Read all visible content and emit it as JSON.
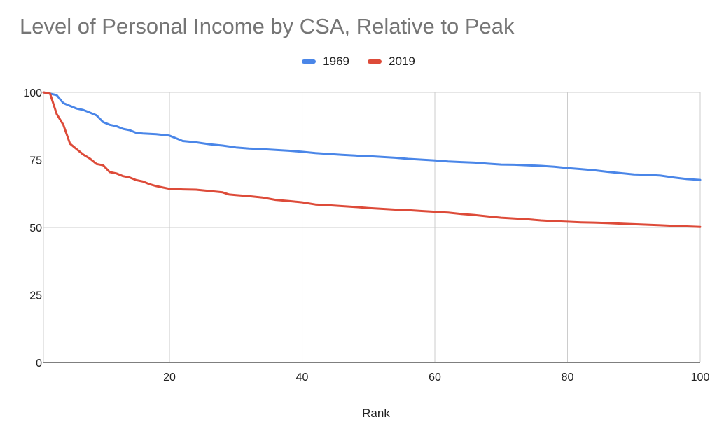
{
  "chart_data": {
    "type": "line",
    "title": "Level of Personal Income by CSA, Relative to Peak",
    "xlabel": "Rank",
    "ylabel": "",
    "xlim": [
      1,
      100
    ],
    "ylim": [
      0,
      100
    ],
    "x_ticks": [
      20,
      40,
      60,
      80,
      100
    ],
    "y_ticks": [
      0,
      25,
      50,
      75,
      100
    ],
    "grid": true,
    "legend_position": "top-center",
    "series": [
      {
        "name": "1969",
        "color": "#4a86e8",
        "points": [
          [
            1,
            100
          ],
          [
            2,
            99.5
          ],
          [
            3,
            99
          ],
          [
            4,
            96
          ],
          [
            5,
            95
          ],
          [
            6,
            94
          ],
          [
            7,
            93.5
          ],
          [
            8,
            92.5
          ],
          [
            9,
            91.5
          ],
          [
            10,
            89
          ],
          [
            11,
            88
          ],
          [
            12,
            87.5
          ],
          [
            13,
            86.5
          ],
          [
            14,
            86
          ],
          [
            15,
            85
          ],
          [
            16,
            84.8
          ],
          [
            18,
            84.5
          ],
          [
            20,
            84
          ],
          [
            21,
            83
          ],
          [
            22,
            82
          ],
          [
            24,
            81.5
          ],
          [
            26,
            80.8
          ],
          [
            28,
            80.3
          ],
          [
            30,
            79.6
          ],
          [
            32,
            79.2
          ],
          [
            34,
            79
          ],
          [
            36,
            78.7
          ],
          [
            38,
            78.4
          ],
          [
            40,
            78
          ],
          [
            42,
            77.5
          ],
          [
            44,
            77.2
          ],
          [
            46,
            76.9
          ],
          [
            48,
            76.6
          ],
          [
            50,
            76.4
          ],
          [
            52,
            76.1
          ],
          [
            54,
            75.8
          ],
          [
            56,
            75.4
          ],
          [
            58,
            75.1
          ],
          [
            60,
            74.8
          ],
          [
            62,
            74.4
          ],
          [
            64,
            74.2
          ],
          [
            66,
            74
          ],
          [
            68,
            73.6
          ],
          [
            70,
            73.3
          ],
          [
            72,
            73.2
          ],
          [
            74,
            73
          ],
          [
            76,
            72.8
          ],
          [
            78,
            72.5
          ],
          [
            80,
            72
          ],
          [
            82,
            71.6
          ],
          [
            84,
            71.2
          ],
          [
            86,
            70.6
          ],
          [
            88,
            70.1
          ],
          [
            90,
            69.6
          ],
          [
            92,
            69.5
          ],
          [
            94,
            69.2
          ],
          [
            96,
            68.5
          ],
          [
            98,
            67.9
          ],
          [
            100,
            67.6
          ]
        ]
      },
      {
        "name": "2019",
        "color": "#dd4b39",
        "points": [
          [
            1,
            100
          ],
          [
            2,
            99.5
          ],
          [
            3,
            92
          ],
          [
            4,
            88
          ],
          [
            5,
            81
          ],
          [
            6,
            79
          ],
          [
            7,
            77
          ],
          [
            8,
            75.5
          ],
          [
            9,
            73.5
          ],
          [
            10,
            73
          ],
          [
            11,
            70.5
          ],
          [
            12,
            70
          ],
          [
            13,
            69
          ],
          [
            14,
            68.5
          ],
          [
            15,
            67.5
          ],
          [
            16,
            67
          ],
          [
            17,
            66
          ],
          [
            18,
            65.3
          ],
          [
            19,
            64.8
          ],
          [
            20,
            64.3
          ],
          [
            22,
            64.1
          ],
          [
            24,
            64
          ],
          [
            26,
            63.5
          ],
          [
            28,
            63
          ],
          [
            29,
            62.2
          ],
          [
            30,
            62
          ],
          [
            32,
            61.6
          ],
          [
            34,
            61.1
          ],
          [
            36,
            60.2
          ],
          [
            38,
            59.8
          ],
          [
            40,
            59.3
          ],
          [
            42,
            58.5
          ],
          [
            44,
            58.2
          ],
          [
            46,
            57.9
          ],
          [
            48,
            57.6
          ],
          [
            50,
            57.2
          ],
          [
            52,
            56.9
          ],
          [
            54,
            56.6
          ],
          [
            56,
            56.4
          ],
          [
            58,
            56.1
          ],
          [
            60,
            55.8
          ],
          [
            62,
            55.5
          ],
          [
            64,
            55
          ],
          [
            66,
            54.6
          ],
          [
            68,
            54.1
          ],
          [
            70,
            53.6
          ],
          [
            72,
            53.3
          ],
          [
            74,
            53
          ],
          [
            76,
            52.6
          ],
          [
            78,
            52.3
          ],
          [
            80,
            52.1
          ],
          [
            82,
            51.9
          ],
          [
            84,
            51.8
          ],
          [
            86,
            51.6
          ],
          [
            88,
            51.4
          ],
          [
            90,
            51.2
          ],
          [
            92,
            51
          ],
          [
            94,
            50.8
          ],
          [
            96,
            50.6
          ],
          [
            98,
            50.4
          ],
          [
            100,
            50.2
          ]
        ]
      }
    ]
  }
}
